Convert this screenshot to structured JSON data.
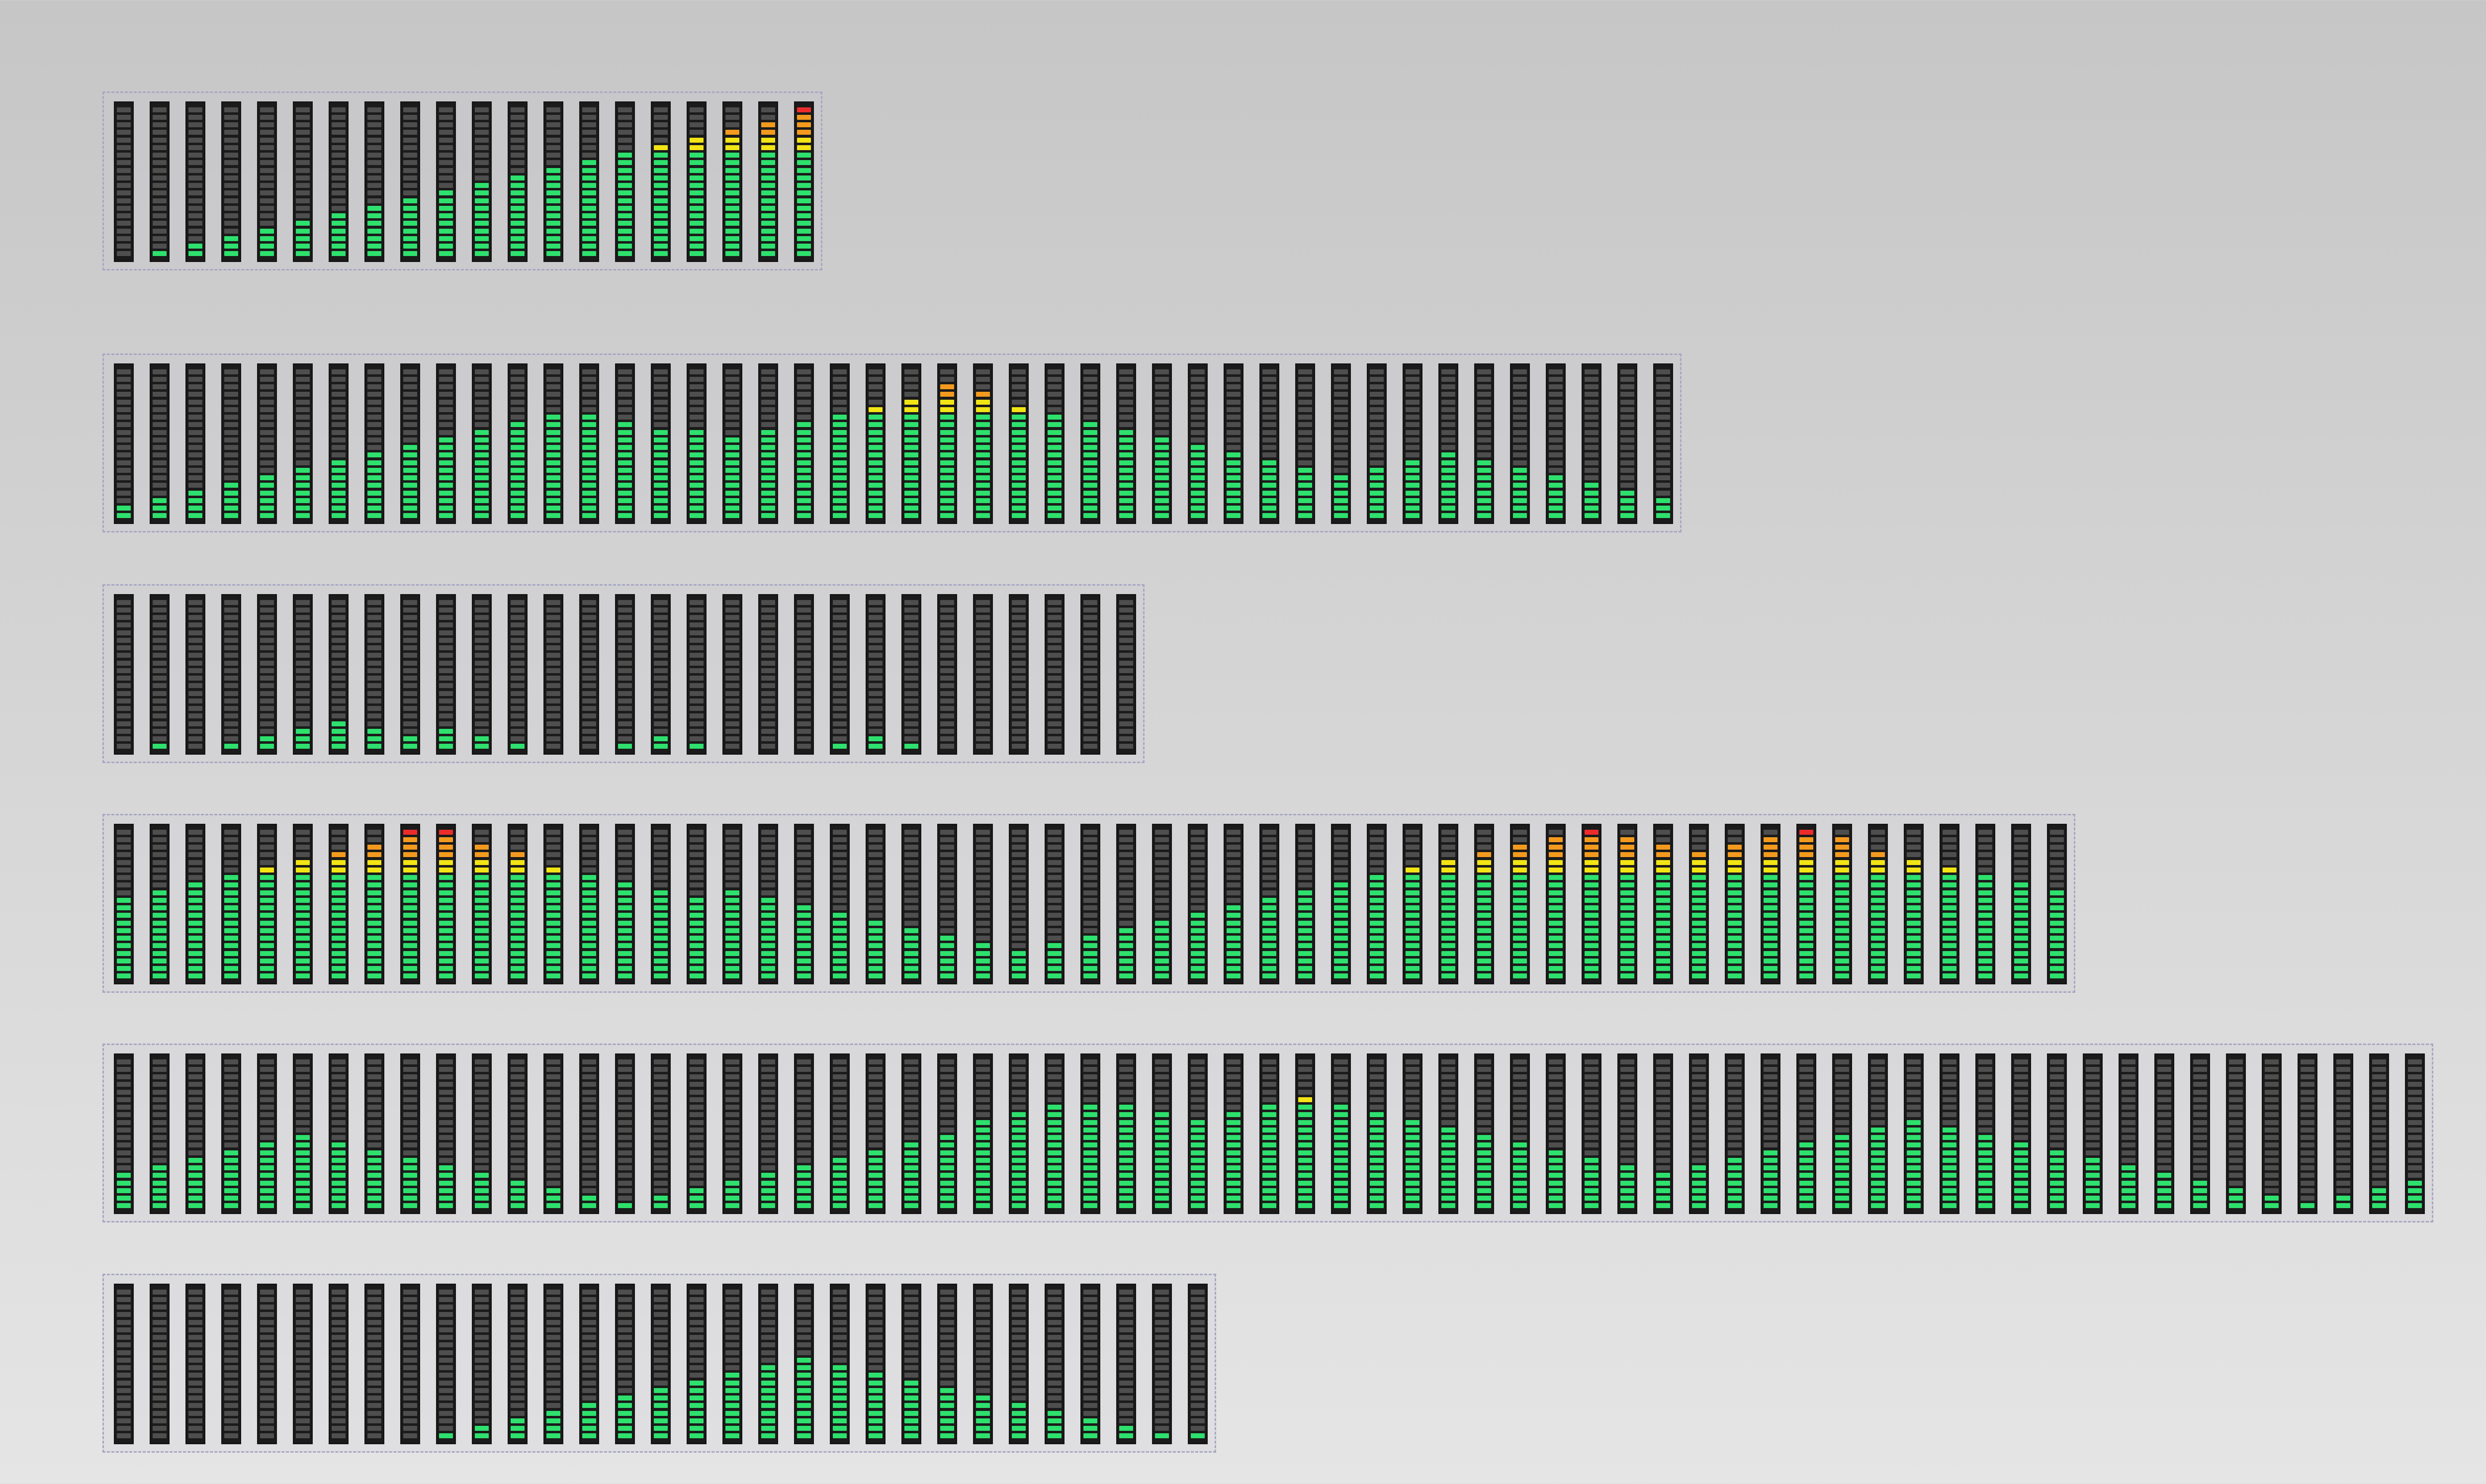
{
  "palette": {
    "off": "#4e4e4e",
    "green": "#2ee06d",
    "yellow": "#f2e415",
    "orange": "#f39a1e",
    "red": "#ee2b2b"
  },
  "segments_per_bar": 20,
  "zones": {
    "green_max": 14,
    "yellow_max": 16,
    "orange_max": 19
  },
  "meters": [
    {
      "name": "meter-1",
      "levels": [
        0,
        1,
        2,
        3,
        4,
        5,
        6,
        7,
        8,
        9,
        10,
        11,
        12,
        13,
        14,
        15,
        16,
        17,
        18,
        20
      ]
    },
    {
      "name": "meter-2",
      "levels": [
        2,
        3,
        4,
        5,
        6,
        7,
        8,
        9,
        10,
        11,
        12,
        13,
        14,
        14,
        13,
        12,
        12,
        11,
        12,
        13,
        14,
        15,
        16,
        18,
        17,
        15,
        14,
        13,
        12,
        11,
        10,
        9,
        8,
        7,
        6,
        7,
        8,
        9,
        8,
        7,
        6,
        5,
        4,
        3
      ]
    },
    {
      "name": "meter-3",
      "levels": [
        0,
        1,
        0,
        1,
        2,
        3,
        4,
        3,
        2,
        3,
        2,
        1,
        0,
        0,
        1,
        2,
        1,
        0,
        0,
        0,
        1,
        2,
        1,
        0,
        0,
        0,
        0,
        0,
        0
      ]
    },
    {
      "name": "meter-4",
      "levels": [
        11,
        12,
        13,
        14,
        15,
        16,
        17,
        18,
        20,
        20,
        18,
        17,
        15,
        14,
        13,
        12,
        11,
        12,
        11,
        10,
        9,
        8,
        7,
        6,
        5,
        4,
        5,
        6,
        7,
        8,
        9,
        10,
        11,
        12,
        13,
        14,
        15,
        16,
        17,
        18,
        19,
        20,
        19,
        18,
        17,
        18,
        19,
        20,
        19,
        17,
        16,
        15,
        14,
        13,
        12
      ]
    },
    {
      "name": "meter-5",
      "levels": [
        5,
        6,
        7,
        8,
        9,
        10,
        9,
        8,
        7,
        6,
        5,
        4,
        3,
        2,
        1,
        2,
        3,
        4,
        5,
        6,
        7,
        8,
        9,
        10,
        12,
        13,
        14,
        14,
        14,
        13,
        12,
        13,
        14,
        15,
        14,
        13,
        12,
        11,
        10,
        9,
        8,
        7,
        6,
        5,
        6,
        7,
        8,
        9,
        10,
        11,
        12,
        11,
        10,
        9,
        8,
        7,
        6,
        5,
        4,
        3,
        2,
        1,
        2,
        3,
        4
      ]
    },
    {
      "name": "meter-6",
      "levels": [
        0,
        0,
        0,
        0,
        0,
        0,
        0,
        0,
        0,
        1,
        2,
        3,
        4,
        5,
        6,
        7,
        8,
        9,
        10,
        11,
        10,
        9,
        8,
        7,
        6,
        5,
        4,
        3,
        2,
        1,
        1
      ]
    }
  ]
}
